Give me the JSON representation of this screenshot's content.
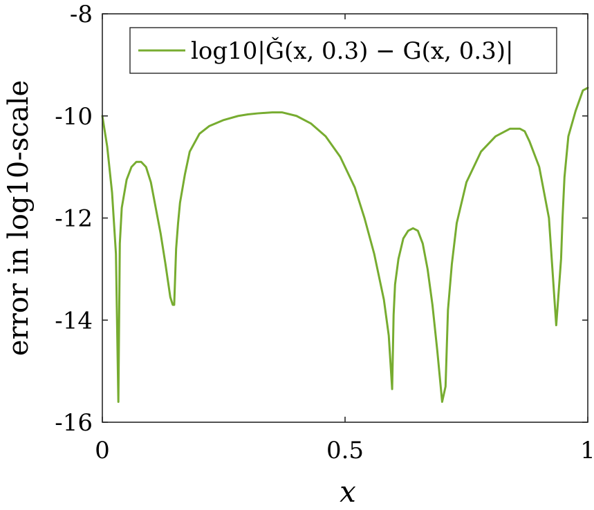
{
  "chart_data": {
    "type": "line",
    "xlabel": "x",
    "ylabel": "error in log10-scale",
    "xlim": [
      0,
      1
    ],
    "ylim": [
      -16,
      -8
    ],
    "xticks": [
      0,
      0.5,
      1
    ],
    "xtick_labels": [
      "0",
      "0.5",
      "1"
    ],
    "yticks": [
      -8,
      -10,
      -12,
      -14,
      -16
    ],
    "ytick_labels": [
      "-8",
      "-10",
      "-12",
      "-14",
      "-16"
    ],
    "grid": false,
    "legend_position": "top-right",
    "series": [
      {
        "name": "log10|Ǧ(x, 0.3) − G(x, 0.3)|",
        "color": "#77AC30",
        "x": [
          0.0,
          0.01,
          0.02,
          0.028,
          0.033,
          0.036,
          0.04,
          0.05,
          0.06,
          0.07,
          0.08,
          0.09,
          0.1,
          0.11,
          0.12,
          0.13,
          0.14,
          0.145,
          0.148,
          0.152,
          0.156,
          0.16,
          0.17,
          0.18,
          0.2,
          0.22,
          0.25,
          0.28,
          0.3,
          0.32,
          0.35,
          0.37,
          0.4,
          0.43,
          0.46,
          0.49,
          0.52,
          0.54,
          0.56,
          0.58,
          0.59,
          0.597,
          0.6,
          0.603,
          0.61,
          0.62,
          0.63,
          0.64,
          0.65,
          0.66,
          0.67,
          0.68,
          0.69,
          0.7,
          0.707,
          0.712,
          0.72,
          0.73,
          0.75,
          0.78,
          0.81,
          0.84,
          0.86,
          0.87,
          0.88,
          0.9,
          0.92,
          0.935,
          0.945,
          0.948,
          0.952,
          0.96,
          0.975,
          0.99,
          1.0
        ],
        "y": [
          -10.0,
          -10.6,
          -11.5,
          -12.7,
          -15.6,
          -12.5,
          -11.8,
          -11.25,
          -11.0,
          -10.9,
          -10.9,
          -11.0,
          -11.3,
          -11.8,
          -12.3,
          -12.9,
          -13.55,
          -13.7,
          -13.7,
          -12.6,
          -12.1,
          -11.7,
          -11.15,
          -10.7,
          -10.35,
          -10.2,
          -10.08,
          -10.0,
          -9.97,
          -9.95,
          -9.93,
          -9.93,
          -10.0,
          -10.15,
          -10.4,
          -10.8,
          -11.4,
          -12.0,
          -12.7,
          -13.6,
          -14.3,
          -15.35,
          -13.9,
          -13.3,
          -12.8,
          -12.4,
          -12.25,
          -12.2,
          -12.25,
          -12.5,
          -13.0,
          -13.7,
          -14.6,
          -15.6,
          -15.3,
          -13.8,
          -12.9,
          -12.1,
          -11.3,
          -10.7,
          -10.4,
          -10.25,
          -10.25,
          -10.3,
          -10.5,
          -11.0,
          -12.0,
          -14.1,
          -12.8,
          -12.0,
          -11.2,
          -10.4,
          -9.9,
          -9.5,
          -9.45
        ]
      }
    ]
  }
}
